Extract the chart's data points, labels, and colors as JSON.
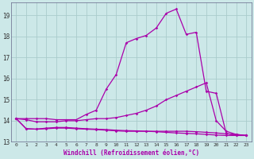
{
  "xlabel": "Windchill (Refroidissement éolien,°C)",
  "bg_color": "#cce8e8",
  "grid_color": "#aacccc",
  "line_color": "#aa00aa",
  "xlim": [
    -0.5,
    23.5
  ],
  "ylim": [
    13.0,
    19.6
  ],
  "xticks": [
    0,
    1,
    2,
    3,
    4,
    5,
    6,
    7,
    8,
    9,
    10,
    11,
    12,
    13,
    14,
    15,
    16,
    17,
    18,
    19,
    20,
    21,
    22,
    23
  ],
  "yticks": [
    13,
    14,
    15,
    16,
    17,
    18,
    19
  ],
  "series": [
    {
      "x": [
        0,
        1,
        2,
        3,
        4,
        5,
        6,
        7,
        8,
        9,
        10,
        11,
        12,
        13,
        14,
        15,
        16,
        17,
        18,
        19,
        20,
        21,
        22,
        23
      ],
      "y": [
        14.1,
        14.1,
        14.1,
        14.1,
        14.05,
        14.05,
        14.05,
        14.3,
        14.5,
        15.5,
        16.2,
        17.7,
        17.9,
        18.05,
        18.4,
        19.1,
        19.3,
        18.1,
        18.2,
        15.4,
        15.3,
        13.4,
        13.3,
        13.3
      ]
    },
    {
      "x": [
        0,
        1,
        2,
        3,
        4,
        5,
        6,
        7,
        8,
        9,
        10,
        11,
        12,
        13,
        14,
        15,
        16,
        17,
        18,
        19,
        20,
        21,
        22,
        23
      ],
      "y": [
        14.1,
        14.05,
        13.95,
        13.95,
        13.95,
        14.0,
        14.0,
        14.05,
        14.1,
        14.1,
        14.15,
        14.25,
        14.35,
        14.5,
        14.7,
        15.0,
        15.2,
        15.4,
        15.6,
        15.8,
        14.0,
        13.5,
        13.35,
        13.3
      ]
    },
    {
      "x": [
        0,
        1,
        2,
        3,
        4,
        5,
        6,
        7,
        8,
        9,
        10,
        11,
        12,
        13,
        14,
        15,
        16,
        17,
        18,
        19,
        20,
        21,
        22,
        23
      ],
      "y": [
        14.1,
        13.62,
        13.6,
        13.62,
        13.65,
        13.65,
        13.62,
        13.6,
        13.58,
        13.55,
        13.52,
        13.5,
        13.5,
        13.5,
        13.5,
        13.5,
        13.5,
        13.5,
        13.48,
        13.45,
        13.42,
        13.38,
        13.35,
        13.3
      ]
    },
    {
      "x": [
        0,
        1,
        2,
        3,
        4,
        5,
        6,
        7,
        8,
        9,
        10,
        11,
        12,
        13,
        14,
        15,
        16,
        17,
        18,
        19,
        20,
        21,
        22,
        23
      ],
      "y": [
        14.1,
        13.62,
        13.6,
        13.65,
        13.68,
        13.68,
        13.65,
        13.62,
        13.6,
        13.58,
        13.55,
        13.53,
        13.52,
        13.5,
        13.48,
        13.45,
        13.42,
        13.4,
        13.38,
        13.35,
        13.32,
        13.3,
        13.3,
        13.3
      ]
    }
  ]
}
